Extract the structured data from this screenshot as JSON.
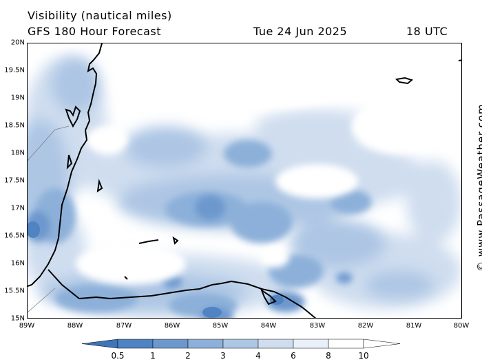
{
  "header": {
    "title": "Visibility (nautical miles)",
    "model": "GFS 180 Hour Forecast",
    "date": "Tue 24 Jun 2025",
    "time": "18 UTC"
  },
  "map": {
    "lat_labels": [
      "20N",
      "19.5N",
      "19N",
      "18.5N",
      "18N",
      "17.5N",
      "17N",
      "16.5N",
      "16N",
      "15.5N",
      "15N"
    ],
    "lon_labels": [
      "89W",
      "88W",
      "87W",
      "86W",
      "85W",
      "84W",
      "83W",
      "82W",
      "81W",
      "80W"
    ],
    "land_outline_color": "#000000",
    "border_color": "#808080"
  },
  "legend": {
    "labels": [
      "0.5",
      "1",
      "2",
      "3",
      "4",
      "6",
      "8",
      "10"
    ],
    "colors": [
      "#3d74ba",
      "#4f83c2",
      "#6d98cd",
      "#8cb0d9",
      "#adc6e4",
      "#cfddef",
      "#e9f0f9",
      "#ffffff"
    ]
  },
  "watermark": "© www.PassageWeather.com"
}
